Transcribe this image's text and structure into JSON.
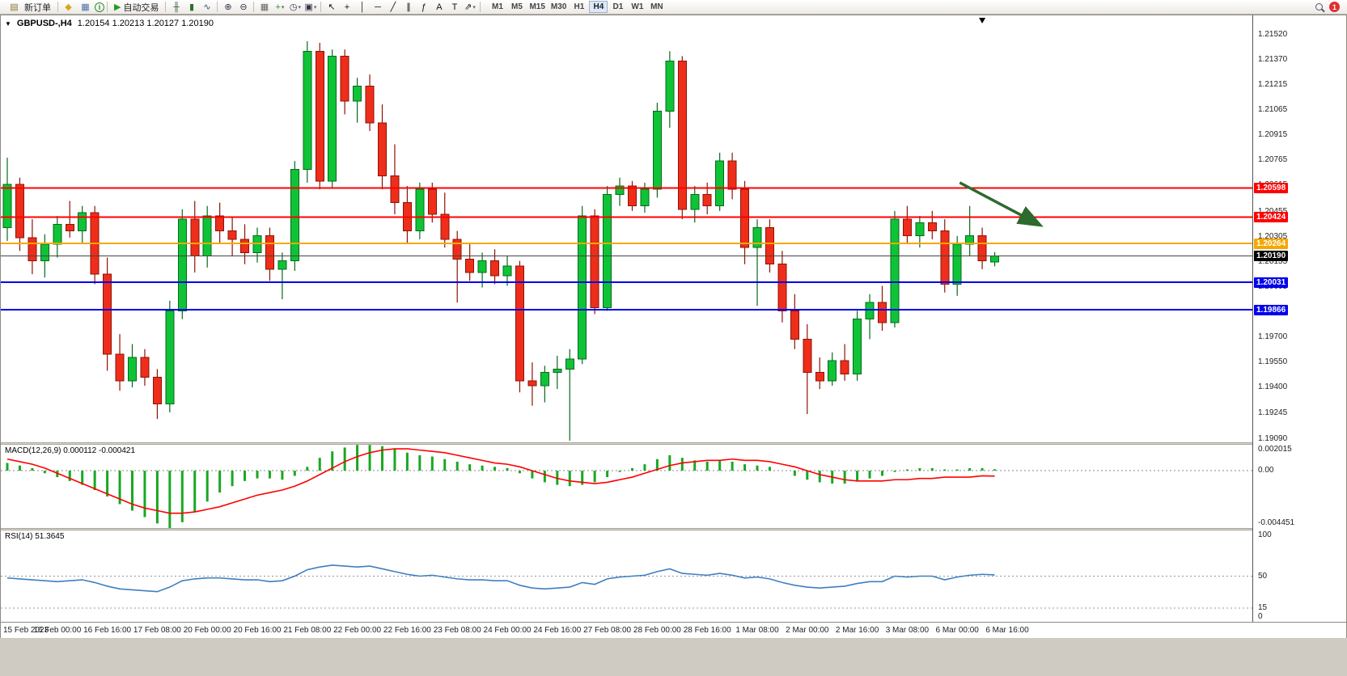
{
  "toolbar": {
    "new_order": {
      "label": "新订单",
      "icon": "new-order-icon"
    },
    "auto_trading": {
      "label": "自动交易",
      "icon": "autotrade-play-icon"
    },
    "icon_groups": [
      {
        "name": "quick-icons",
        "items": [
          {
            "name": "gold-icon",
            "glyph": "◆",
            "color": "#d9a520"
          },
          {
            "name": "chart-window-icon",
            "glyph": "▦",
            "color": "#4a6fa5"
          },
          {
            "name": "info-icon",
            "glyph": "i",
            "color": "#2a8f2a"
          }
        ]
      },
      {
        "name": "chart-type-group",
        "items": [
          {
            "name": "bar-chart-icon",
            "glyph": "╫",
            "color": "#3a5f3a"
          },
          {
            "name": "candlestick-icon",
            "glyph": "▮",
            "color": "#2f6f2f"
          },
          {
            "name": "line-chart-icon",
            "glyph": "∿",
            "color": "#2f4f7f"
          }
        ]
      },
      {
        "name": "zoom-group",
        "items": [
          {
            "name": "zoom-in-icon",
            "glyph": "⊕",
            "color": "#334"
          },
          {
            "name": "zoom-out-icon",
            "glyph": "⊖",
            "color": "#334"
          }
        ]
      },
      {
        "name": "window-tools-group",
        "items": [
          {
            "name": "tile-windows-icon",
            "glyph": "▦",
            "color": "#666"
          },
          {
            "name": "indicators-icon",
            "glyph": "+",
            "color": "#1f9e1f",
            "dropdown": true
          },
          {
            "name": "period-icon",
            "glyph": "◷",
            "color": "#334",
            "dropdown": true
          },
          {
            "name": "template-icon",
            "glyph": "▣",
            "color": "#334",
            "dropdown": true
          }
        ]
      },
      {
        "name": "draw-tools-group",
        "items": [
          {
            "name": "cursor-icon",
            "glyph": "↖",
            "color": "#111"
          },
          {
            "name": "crosshair-icon",
            "glyph": "+",
            "color": "#111"
          },
          {
            "name": "vertical-line-icon",
            "glyph": "│",
            "color": "#111"
          },
          {
            "name": "horizontal-line-icon",
            "glyph": "─",
            "color": "#111"
          },
          {
            "name": "trendline-icon",
            "glyph": "╱",
            "color": "#111"
          },
          {
            "name": "channel-icon",
            "glyph": "∥",
            "color": "#111"
          },
          {
            "name": "fibonacci-icon",
            "glyph": "ƒ",
            "color": "#111"
          },
          {
            "name": "text-icon",
            "glyph": "A",
            "color": "#111"
          },
          {
            "name": "label-icon",
            "glyph": "T",
            "color": "#111"
          },
          {
            "name": "arrows-icon",
            "glyph": "⇗",
            "color": "#111",
            "dropdown": true
          }
        ]
      }
    ],
    "timeframes": [
      "M1",
      "M5",
      "M15",
      "M30",
      "H1",
      "H4",
      "D1",
      "W1",
      "MN"
    ],
    "active_timeframe": "H4",
    "notification_count": "1"
  },
  "chart_data": [
    {
      "type": "candlestick",
      "title": "GBPUSD-,H4",
      "ohlc_display": "1.20154 1.20213 1.20127 1.20190",
      "ylim": [
        1.1907,
        1.21635
      ],
      "y_ticks": [
        "1.21520",
        "1.21370",
        "1.21215",
        "1.21065",
        "1.20915",
        "1.20765",
        "1.20615",
        "1.20455",
        "1.20305",
        "1.20155",
        "1.20005",
        "1.19855",
        "1.19700",
        "1.19550",
        "1.19400",
        "1.19245",
        "1.19090"
      ],
      "colors": {
        "up": "#0fc337",
        "down": "#ee2e1a",
        "up_dark": "#06691d",
        "down_dark": "#8e1205"
      },
      "candles": [
        [
          1.2036,
          1.2078,
          1.2028,
          1.2062
        ],
        [
          1.2062,
          1.2066,
          1.2022,
          1.203
        ],
        [
          1.203,
          1.2041,
          1.2008,
          1.2016
        ],
        [
          1.2016,
          1.2032,
          1.2006,
          1.2026
        ],
        [
          1.2026,
          1.2043,
          1.2018,
          1.2038
        ],
        [
          1.2038,
          1.2052,
          1.203,
          1.2034
        ],
        [
          1.2034,
          1.2049,
          1.2027,
          1.2045
        ],
        [
          1.2045,
          1.2049,
          1.2002,
          1.2008
        ],
        [
          1.2008,
          1.2018,
          1.195,
          1.196
        ],
        [
          1.196,
          1.1972,
          1.1938,
          1.1944
        ],
        [
          1.1944,
          1.1966,
          1.194,
          1.1958
        ],
        [
          1.1958,
          1.1963,
          1.1941,
          1.1946
        ],
        [
          1.1946,
          1.1951,
          1.1921,
          1.193
        ],
        [
          1.193,
          1.1992,
          1.1925,
          1.1986
        ],
        [
          1.1986,
          1.2047,
          1.1981,
          1.2041
        ],
        [
          1.2041,
          1.2052,
          1.2009,
          1.2019
        ],
        [
          1.2019,
          1.2049,
          1.2012,
          1.2043
        ],
        [
          1.2043,
          1.2051,
          1.2027,
          1.2034
        ],
        [
          1.2034,
          1.2042,
          1.2019,
          1.2029
        ],
        [
          1.2029,
          1.2038,
          1.2014,
          1.2021
        ],
        [
          1.2021,
          1.2036,
          1.2015,
          1.2031
        ],
        [
          1.2031,
          1.2036,
          1.2004,
          1.2011
        ],
        [
          1.2011,
          1.2021,
          1.1993,
          1.2016
        ],
        [
          1.2016,
          1.2076,
          1.201,
          1.2071
        ],
        [
          1.2071,
          1.2148,
          1.2063,
          1.2142
        ],
        [
          1.2142,
          1.2147,
          1.2059,
          1.2064
        ],
        [
          1.2064,
          1.2143,
          1.206,
          1.2139
        ],
        [
          1.2139,
          1.2143,
          1.2104,
          1.2112
        ],
        [
          1.2112,
          1.2126,
          1.2099,
          1.2121
        ],
        [
          1.2121,
          1.2128,
          1.2094,
          1.2099
        ],
        [
          1.2099,
          1.211,
          1.2059,
          1.2067
        ],
        [
          1.2067,
          1.2086,
          1.2044,
          1.2051
        ],
        [
          1.2051,
          1.2061,
          1.2027,
          1.2034
        ],
        [
          1.2034,
          1.2063,
          1.2029,
          1.2059
        ],
        [
          1.2059,
          1.2063,
          1.2039,
          1.2044
        ],
        [
          1.2044,
          1.2057,
          1.2024,
          1.2029
        ],
        [
          1.2029,
          1.2034,
          1.1991,
          1.2017
        ],
        [
          1.2017,
          1.2026,
          1.2004,
          1.2009
        ],
        [
          1.2009,
          1.2021,
          1.2,
          1.2016
        ],
        [
          1.2016,
          1.2023,
          1.2002,
          1.2007
        ],
        [
          1.2007,
          1.2019,
          1.2001,
          1.2013
        ],
        [
          1.2013,
          1.2016,
          1.1937,
          1.1944
        ],
        [
          1.1944,
          1.1955,
          1.1929,
          1.1941
        ],
        [
          1.1941,
          1.1953,
          1.1931,
          1.1949
        ],
        [
          1.1949,
          1.1959,
          1.1939,
          1.1951
        ],
        [
          1.1951,
          1.1963,
          1.1908,
          1.1957
        ],
        [
          1.1957,
          1.2049,
          1.1954,
          1.2043
        ],
        [
          1.2043,
          1.2047,
          1.1984,
          1.1988
        ],
        [
          1.1988,
          1.2061,
          1.1986,
          1.2056
        ],
        [
          1.2056,
          1.2066,
          1.2049,
          1.2061
        ],
        [
          1.2061,
          1.2064,
          1.2046,
          1.2049
        ],
        [
          1.2049,
          1.2063,
          1.2045,
          1.2059
        ],
        [
          1.2059,
          1.2111,
          1.2054,
          1.2106
        ],
        [
          1.2106,
          1.2142,
          1.2096,
          1.2136
        ],
        [
          1.2136,
          1.2139,
          1.2041,
          1.2047
        ],
        [
          1.2047,
          1.2061,
          1.2039,
          1.2056
        ],
        [
          1.2056,
          1.2063,
          1.2044,
          1.2049
        ],
        [
          1.2049,
          1.2081,
          1.2046,
          1.2076
        ],
        [
          1.2076,
          1.2081,
          1.2053,
          1.2059
        ],
        [
          1.2059,
          1.2064,
          1.2014,
          1.2024
        ],
        [
          1.2024,
          1.2041,
          1.1989,
          1.2036
        ],
        [
          1.2036,
          1.2041,
          1.2009,
          1.2014
        ],
        [
          1.2014,
          1.2022,
          1.1979,
          1.1986
        ],
        [
          1.1986,
          1.1996,
          1.1963,
          1.1969
        ],
        [
          1.1969,
          1.1978,
          1.1924,
          1.1949
        ],
        [
          1.1949,
          1.1958,
          1.1939,
          1.1944
        ],
        [
          1.1944,
          1.1961,
          1.1941,
          1.1956
        ],
        [
          1.1956,
          1.1966,
          1.1944,
          1.1948
        ],
        [
          1.1948,
          1.1986,
          1.1944,
          1.1981
        ],
        [
          1.1981,
          1.1996,
          1.1969,
          1.1991
        ],
        [
          1.1991,
          1.2001,
          1.1974,
          1.1979
        ],
        [
          1.1979,
          1.2046,
          1.1976,
          1.2041
        ],
        [
          1.2041,
          1.2049,
          1.2026,
          1.2031
        ],
        [
          1.2031,
          1.2043,
          1.2024,
          1.2039
        ],
        [
          1.2039,
          1.2046,
          1.2029,
          1.2034
        ],
        [
          1.2034,
          1.2041,
          1.1997,
          1.2002
        ],
        [
          1.2002,
          1.2031,
          1.1995,
          1.2026
        ],
        [
          1.2026,
          1.2049,
          1.2019,
          1.2031
        ],
        [
          1.2031,
          1.2036,
          1.2011,
          1.2016
        ],
        [
          1.20154,
          1.20213,
          1.20127,
          1.2019
        ]
      ],
      "hlines": [
        {
          "price": 1.20598,
          "color": "#ff0000",
          "width": 2,
          "label": "1.20598"
        },
        {
          "price": 1.20424,
          "color": "#ff0000",
          "width": 2,
          "label": "1.20424"
        },
        {
          "price": 1.20264,
          "color": "#f5a800",
          "width": 2,
          "label": "1.20264"
        },
        {
          "price": 1.20031,
          "color": "#0000ee",
          "width": 2,
          "label": "1.20031"
        },
        {
          "price": 1.19866,
          "color": "#0000ee",
          "width": 2,
          "label": "1.19866"
        }
      ],
      "current_price": {
        "price": 1.2019,
        "label": "1.20190",
        "line_color": "#444444",
        "tag_bg": "#000000"
      },
      "annotation_arrow": {
        "from_index": 76.2,
        "from_price": 1.2063,
        "to_index": 82.5,
        "to_price": 1.2038,
        "color": "#2d6a2d"
      },
      "top_marker_index": 78,
      "x_labels": [
        "15 Feb 2023",
        "16 Feb 00:00",
        "16 Feb 16:00",
        "17 Feb 08:00",
        "20 Feb 00:00",
        "20 Feb 16:00",
        "21 Feb 08:00",
        "22 Feb 00:00",
        "22 Feb 16:00",
        "23 Feb 08:00",
        "24 Feb 00:00",
        "24 Feb 16:00",
        "27 Feb 08:00",
        "28 Feb 00:00",
        "28 Feb 16:00",
        "1 Mar 08:00",
        "2 Mar 00:00",
        "2 Mar 16:00",
        "3 Mar 08:00",
        "6 Mar 00:00",
        "6 Mar 16:00"
      ]
    },
    {
      "type": "bar",
      "name": "MACD",
      "label": "MACD(12,26,9) 0.000112 -0.000421",
      "ylim": [
        -0.004451,
        0.002015
      ],
      "y_ticks": [
        "0.002015",
        "0.00",
        "-0.004451"
      ],
      "colors": {
        "histogram": "#18a822",
        "signal": "#ff0000"
      },
      "histogram": [
        0.0006,
        0.0004,
        0.0002,
        -0.0002,
        -0.0005,
        -0.0008,
        -0.0011,
        -0.0015,
        -0.002,
        -0.0026,
        -0.0031,
        -0.0036,
        -0.0041,
        -0.00445,
        -0.004,
        -0.0032,
        -0.0024,
        -0.0017,
        -0.0012,
        -0.0008,
        -0.0006,
        -0.0006,
        -0.0007,
        -0.0004,
        0.0003,
        0.001,
        0.0015,
        0.0018,
        0.002,
        0.002,
        0.0019,
        0.0017,
        0.0014,
        0.0012,
        0.0011,
        0.0009,
        0.0007,
        0.0005,
        0.0004,
        0.0003,
        0.0002,
        -0.0002,
        -0.0006,
        -0.0009,
        -0.0011,
        -0.0012,
        -0.0011,
        -0.0009,
        -0.0005,
        -0.0001,
        0.0002,
        0.0005,
        0.0009,
        0.0012,
        0.001,
        0.0008,
        0.0007,
        0.0008,
        0.0007,
        0.0005,
        0.0004,
        0.0003,
        0.0,
        -0.0004,
        -0.0007,
        -0.0009,
        -0.001,
        -0.001,
        -0.0008,
        -0.0006,
        -0.0004,
        -0.0001,
        0.0001,
        0.0002,
        0.0002,
        0.0001,
        0.0001,
        0.0002,
        0.0002,
        0.000112
      ],
      "signal": [
        0.0009,
        0.0007,
        0.0005,
        0.0002,
        -0.0002,
        -0.0006,
        -0.001,
        -0.0014,
        -0.0018,
        -0.0022,
        -0.0026,
        -0.0029,
        -0.0031,
        -0.0033,
        -0.0033,
        -0.0032,
        -0.003,
        -0.0028,
        -0.0025,
        -0.0022,
        -0.0019,
        -0.0017,
        -0.0015,
        -0.0012,
        -0.0008,
        -0.0003,
        0.0002,
        0.0007,
        0.0011,
        0.0014,
        0.0016,
        0.0017,
        0.0017,
        0.0016,
        0.0015,
        0.0014,
        0.0012,
        0.001,
        0.0008,
        0.0006,
        0.0005,
        0.0003,
        0.0,
        -0.0003,
        -0.0006,
        -0.0008,
        -0.0009,
        -0.001,
        -0.0009,
        -0.0007,
        -0.0005,
        -0.0002,
        0.0001,
        0.0004,
        0.0006,
        0.0007,
        0.0008,
        0.0008,
        0.0009,
        0.0008,
        0.0008,
        0.0007,
        0.0005,
        0.0003,
        0.0,
        -0.0003,
        -0.0005,
        -0.0007,
        -0.0008,
        -0.0008,
        -0.0008,
        -0.0007,
        -0.0007,
        -0.0006,
        -0.0006,
        -0.0005,
        -0.0005,
        -0.0005,
        -0.0004,
        -0.000421
      ]
    },
    {
      "type": "line",
      "name": "RSI",
      "label": "RSI(14) 51.3645",
      "ylim": [
        0,
        100
      ],
      "y_ticks": [
        "100",
        "50",
        "15",
        "0"
      ],
      "levels": [
        50,
        15
      ],
      "color": "#3e7fc1",
      "values": [
        48,
        47,
        46,
        45,
        44,
        45,
        46,
        43,
        39,
        36,
        35,
        34,
        33,
        38,
        45,
        47,
        48,
        48,
        47,
        46,
        46,
        44,
        45,
        50,
        57,
        60,
        62,
        61,
        60,
        61,
        58,
        55,
        52,
        50,
        51,
        49,
        47,
        46,
        46,
        45,
        45,
        40,
        37,
        36,
        37,
        38,
        43,
        41,
        47,
        49,
        50,
        51,
        55,
        58,
        53,
        52,
        51,
        53,
        51,
        48,
        49,
        47,
        43,
        40,
        38,
        37,
        38,
        39,
        42,
        44,
        44,
        50,
        49,
        50,
        50,
        46,
        49,
        51,
        52,
        51.3645
      ]
    }
  ]
}
